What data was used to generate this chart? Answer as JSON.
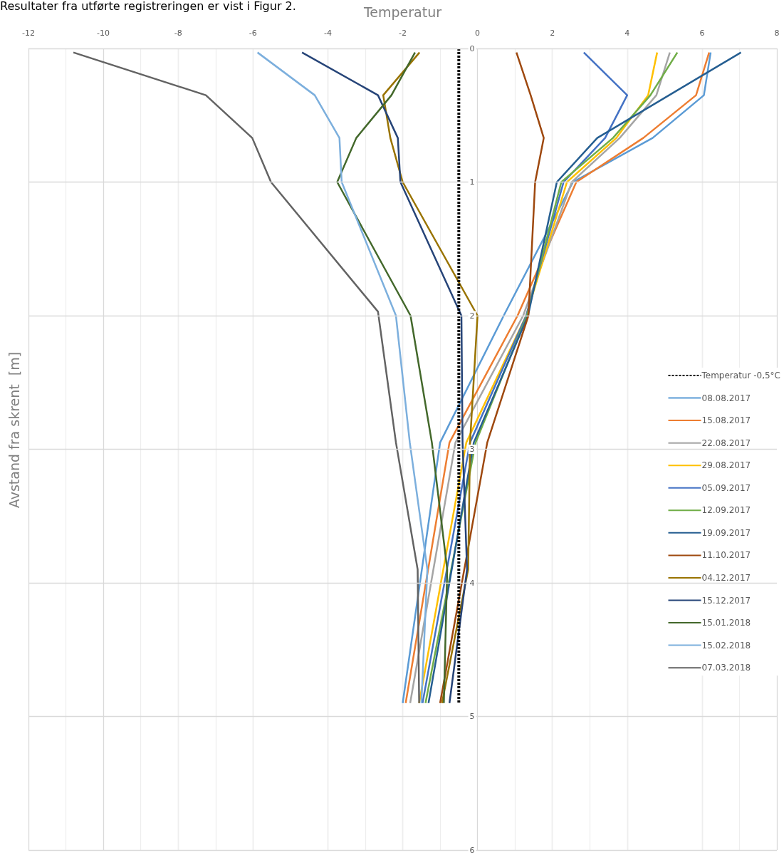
{
  "chart_data": {
    "type": "line",
    "xlabel": "Temperatur",
    "ylabel": "Avstand fra skrent  [m]",
    "annotations": [
      "Resultater fra utførte registreringen er vist i Figur 2."
    ],
    "xlim": [
      -12,
      8
    ],
    "xticks": [
      -12,
      -10,
      -8,
      -6,
      -4,
      -2,
      0,
      2,
      4,
      6,
      8
    ],
    "ylim": [
      6,
      0
    ],
    "yticks": [
      0,
      1,
      2,
      3,
      4,
      5,
      6
    ],
    "grid": true,
    "legend": "right",
    "marker": "none",
    "series": [
      {
        "name": "Temperatur -0,5°C",
        "color": "#000000",
        "line_style": "dashed",
        "x": [
          -0.5,
          -0.5
        ],
        "values": [
          0,
          4.9
        ]
      },
      {
        "name": "08.08.2017",
        "color": "#5b9bd5",
        "line_style": "solid",
        "x": [
          6.23,
          6.05,
          4.68,
          2.55,
          0.7,
          -1.0,
          -2.0
        ],
        "values": [
          0.03,
          0.35,
          0.67,
          1,
          2,
          2.95,
          4.9
        ]
      },
      {
        "name": "15.08.2017",
        "color": "#ed7d31",
        "line_style": "solid",
        "x": [
          6.19,
          5.84,
          4.43,
          2.64,
          1.07,
          -0.75,
          -1.92
        ],
        "values": [
          0.03,
          0.35,
          0.67,
          1,
          2,
          2.95,
          4.9
        ]
      },
      {
        "name": "22.08.2017",
        "color": "#a5a5a5",
        "line_style": "solid",
        "x": [
          5.14,
          4.78,
          3.8,
          2.52,
          1.22,
          -0.59,
          -1.8
        ],
        "values": [
          0.03,
          0.35,
          0.67,
          1,
          2,
          2.95,
          4.9
        ]
      },
      {
        "name": "29.08.2017",
        "color": "#ffc000",
        "line_style": "solid",
        "x": [
          4.8,
          4.56,
          3.71,
          2.39,
          1.3,
          -0.3,
          -1.56
        ],
        "values": [
          0.03,
          0.35,
          0.67,
          1,
          2,
          2.95,
          4.9
        ]
      },
      {
        "name": "05.09.2017",
        "color": "#4472c4",
        "line_style": "solid",
        "x": [
          2.84,
          4.0,
          3.41,
          2.3,
          1.3,
          -0.2,
          -1.47
        ],
        "values": [
          0.03,
          0.35,
          0.67,
          1,
          2,
          2.95,
          4.9
        ]
      },
      {
        "name": "12.09.2017",
        "color": "#70ad47",
        "line_style": "solid",
        "x": [
          5.34,
          4.62,
          3.62,
          2.24,
          1.32,
          -0.05,
          -1.39
        ],
        "values": [
          0.03,
          0.35,
          0.67,
          1,
          2,
          2.95,
          4.9
        ]
      },
      {
        "name": "19.09.2017",
        "color": "#255e91",
        "line_style": "solid",
        "x": [
          7.04,
          3.2,
          2.12,
          1.35,
          -0.1,
          -1.31
        ],
        "values": [
          0.03,
          0.67,
          1,
          2,
          2.95,
          4.9
        ]
      },
      {
        "name": "11.10.2017",
        "color": "#9e480e",
        "line_style": "solid",
        "x": [
          1.04,
          1.42,
          1.77,
          1.54,
          1.36,
          0.26,
          -1.0
        ],
        "values": [
          0.03,
          0.35,
          0.67,
          1,
          2,
          2.95,
          4.9
        ]
      },
      {
        "name": "04.12.2017",
        "color": "#997300",
        "line_style": "solid",
        "x": [
          -1.55,
          -2.52,
          -2.33,
          -2.0,
          0.0,
          -0.2,
          -0.25,
          -0.95
        ],
        "values": [
          0.03,
          0.35,
          0.67,
          1,
          2,
          2.95,
          3.9,
          4.9
        ]
      },
      {
        "name": "15.12.2017",
        "color": "#264478",
        "line_style": "solid",
        "x": [
          -4.69,
          -2.66,
          -2.13,
          -2.06,
          -0.43,
          -0.4,
          -0.28,
          -0.75
        ],
        "values": [
          0.03,
          0.35,
          0.67,
          1,
          2,
          2.95,
          3.9,
          4.9
        ]
      },
      {
        "name": "15.01.2018",
        "color": "#43682b",
        "line_style": "solid",
        "x": [
          -1.67,
          -2.3,
          -3.24,
          -3.75,
          -1.79,
          -1.22,
          -0.81,
          -0.9
        ],
        "values": [
          0.03,
          0.35,
          0.67,
          1,
          2,
          2.95,
          3.9,
          4.9
        ]
      },
      {
        "name": "15.02.2018",
        "color": "#7cafdd",
        "line_style": "solid",
        "x": [
          -5.88,
          -4.35,
          -3.69,
          -3.63,
          -2.18,
          -1.81,
          -1.34,
          -1.5
        ],
        "values": [
          0.03,
          0.35,
          0.67,
          1,
          2,
          2.95,
          3.9,
          4.9
        ]
      },
      {
        "name": "07.03.2018",
        "color": "#636363",
        "line_style": "solid",
        "x": [
          -10.8,
          -7.26,
          -6.02,
          -5.52,
          -2.66,
          -2.18,
          -1.6,
          -1.56
        ],
        "values": [
          0.03,
          0.35,
          0.67,
          1,
          1.97,
          2.95,
          3.9,
          4.9
        ]
      }
    ]
  }
}
